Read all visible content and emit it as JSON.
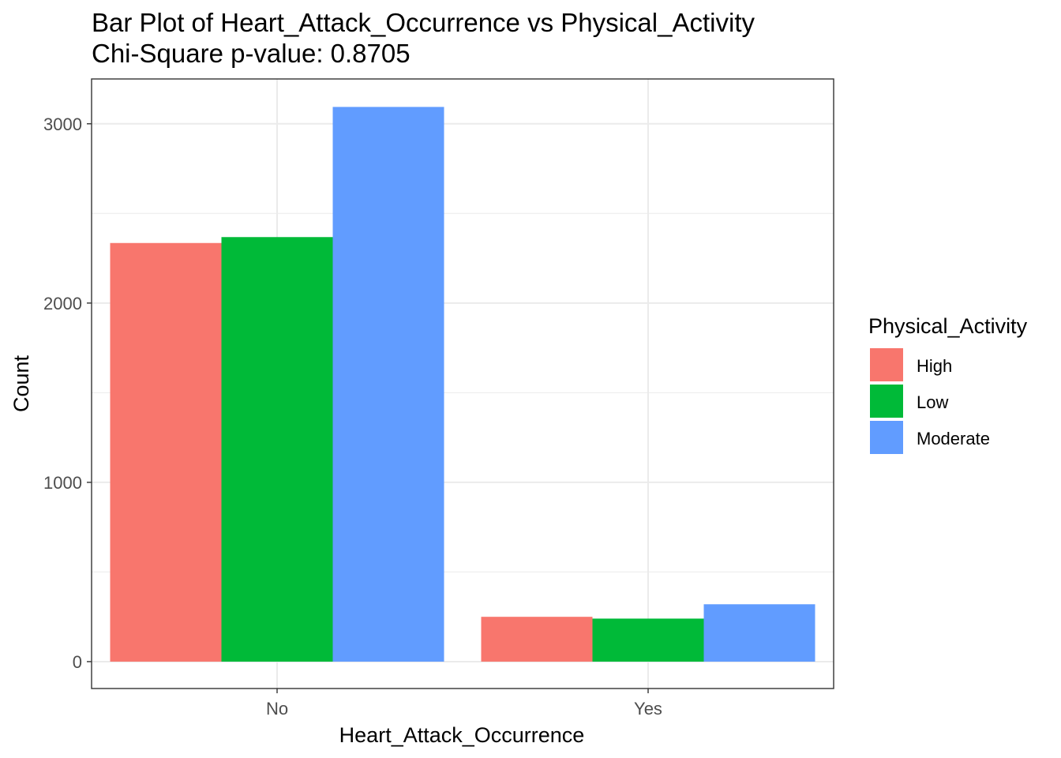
{
  "chart_data": {
    "type": "bar",
    "title": "Bar Plot of Heart_Attack_Occurrence vs Physical_Activity",
    "subtitle": "Chi-Square p-value: 0.8705",
    "xlabel": "Heart_Attack_Occurrence",
    "ylabel": "Count",
    "categories": [
      "No",
      "Yes"
    ],
    "series": [
      {
        "name": "High",
        "color": "#F8766D",
        "values": [
          2335,
          250
        ]
      },
      {
        "name": "Low",
        "color": "#00BA38",
        "values": [
          2368,
          240
        ]
      },
      {
        "name": "Moderate",
        "color": "#619CFF",
        "values": [
          3094,
          320
        ]
      }
    ],
    "ylim": [
      -150,
      3250
    ],
    "yticks": [
      0,
      1000,
      2000,
      3000
    ],
    "ytick_labels": [
      "0",
      "1000",
      "2000",
      "3000"
    ],
    "grid": true,
    "legend": {
      "title": "Physical_Activity",
      "position": "right"
    }
  }
}
